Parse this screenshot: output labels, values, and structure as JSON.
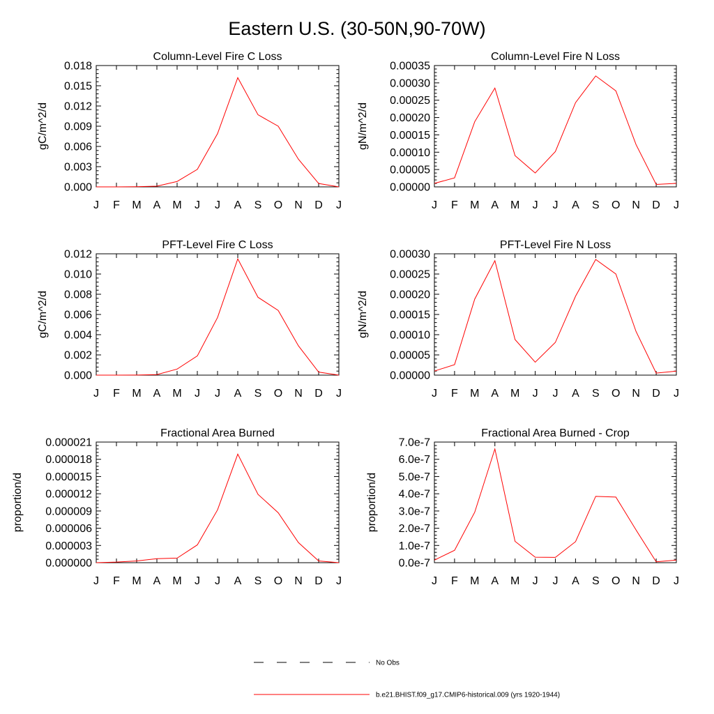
{
  "title": "Eastern U.S. (30-50N,90-70W)",
  "chart_data": [
    {
      "type": "line",
      "title": "Column-Level Fire C Loss",
      "ylabel": "gC/m^2/d",
      "categories": [
        "J",
        "F",
        "M",
        "A",
        "M",
        "J",
        "J",
        "A",
        "S",
        "O",
        "N",
        "D",
        "J"
      ],
      "ylim": [
        0,
        0.018
      ],
      "yticks": [
        "0.000",
        "0.003",
        "0.006",
        "0.009",
        "0.012",
        "0.015",
        "0.018"
      ],
      "series": [
        {
          "name": "b.e21.BHIST.f09_g17.CMIP6-historical.009 (yrs 1920-1944)",
          "color": "#ff0000",
          "values": [
            0.0,
            0.0,
            2e-05,
            0.0001,
            0.0008,
            0.0026,
            0.0079,
            0.0162,
            0.0107,
            0.009,
            0.0041,
            0.0005,
            0.0
          ]
        }
      ]
    },
    {
      "type": "line",
      "title": "Column-Level Fire N Loss",
      "ylabel": "gN/m^2/d",
      "categories": [
        "J",
        "F",
        "M",
        "A",
        "M",
        "J",
        "J",
        "A",
        "S",
        "O",
        "N",
        "D",
        "J"
      ],
      "ylim": [
        0,
        0.00035
      ],
      "yticks": [
        "0.00000",
        "0.00005",
        "0.00010",
        "0.00015",
        "0.00020",
        "0.00025",
        "0.00030",
        "0.00035"
      ],
      "series": [
        {
          "name": "b.e21.BHIST.f09_g17.CMIP6-historical.009 (yrs 1920-1944)",
          "color": "#ff0000",
          "values": [
            1e-05,
            2.6e-05,
            0.000188,
            0.000285,
            9e-05,
            4e-05,
            0.000102,
            0.000243,
            0.00032,
            0.000277,
            0.000122,
            7e-06,
            1e-05
          ]
        }
      ]
    },
    {
      "type": "line",
      "title": "PFT-Level Fire C Loss",
      "ylabel": "gC/m^2/d",
      "categories": [
        "J",
        "F",
        "M",
        "A",
        "M",
        "J",
        "J",
        "A",
        "S",
        "O",
        "N",
        "D",
        "J"
      ],
      "ylim": [
        0,
        0.012
      ],
      "yticks": [
        "0.000",
        "0.002",
        "0.004",
        "0.006",
        "0.008",
        "0.010",
        "0.012"
      ],
      "series": [
        {
          "name": "b.e21.BHIST.f09_g17.CMIP6-historical.009 (yrs 1920-1944)",
          "color": "#ff0000",
          "values": [
            0.0,
            0.0,
            1e-05,
            5e-05,
            0.0006,
            0.0019,
            0.0057,
            0.0115,
            0.0077,
            0.0064,
            0.0029,
            0.0003,
            0.0
          ]
        }
      ]
    },
    {
      "type": "line",
      "title": "PFT-Level Fire N Loss",
      "ylabel": "gN/m^2/d",
      "categories": [
        "J",
        "F",
        "M",
        "A",
        "M",
        "J",
        "J",
        "A",
        "S",
        "O",
        "N",
        "D",
        "J"
      ],
      "ylim": [
        0,
        0.0003
      ],
      "yticks": [
        "0.00000",
        "0.00005",
        "0.00010",
        "0.00015",
        "0.00020",
        "0.00025",
        "0.00030"
      ],
      "series": [
        {
          "name": "b.e21.BHIST.f09_g17.CMIP6-historical.009 (yrs 1920-1944)",
          "color": "#ff0000",
          "values": [
            1e-05,
            2.6e-05,
            0.000188,
            0.000283,
            8.8e-05,
            3.2e-05,
            8.1e-05,
            0.000195,
            0.000286,
            0.00025,
            0.000108,
            5e-06,
            1e-05
          ]
        }
      ]
    },
    {
      "type": "line",
      "title": "Fractional Area Burned",
      "ylabel": "proportion/d",
      "categories": [
        "J",
        "F",
        "M",
        "A",
        "M",
        "J",
        "J",
        "A",
        "S",
        "O",
        "N",
        "D",
        "J"
      ],
      "ylim": [
        0,
        2.1e-05
      ],
      "yticks": [
        "0.000000",
        "0.000003",
        "0.000006",
        "0.000009",
        "0.000012",
        "0.000015",
        "0.000018",
        "0.000021"
      ],
      "series": [
        {
          "name": "b.e21.BHIST.f09_g17.CMIP6-historical.009 (yrs 1920-1944)",
          "color": "#ff0000",
          "values": [
            0.0,
            1e-07,
            3e-07,
            7e-07,
            8e-07,
            3.1e-06,
            9.2e-06,
            1.89e-05,
            1.19e-05,
            8.7e-06,
            3.5e-06,
            3e-07,
            0.0
          ]
        }
      ]
    },
    {
      "type": "line",
      "title": "Fractional Area Burned - Crop",
      "ylabel": "proportion/d",
      "categories": [
        "J",
        "F",
        "M",
        "A",
        "M",
        "J",
        "J",
        "A",
        "S",
        "O",
        "N",
        "D",
        "J"
      ],
      "ylim": [
        0,
        7e-07
      ],
      "yticks": [
        "0.0e-7",
        "1.0e-7",
        "2.0e-7",
        "3.0e-7",
        "4.0e-7",
        "5.0e-7",
        "6.0e-7",
        "7.0e-7"
      ],
      "series": [
        {
          "name": "b.e21.BHIST.f09_g17.CMIP6-historical.009 (yrs 1920-1944)",
          "color": "#ff0000",
          "values": [
            1.5e-08,
            7.2e-08,
            2.93e-07,
            6.6e-07,
            1.24e-07,
            3.2e-08,
            3.1e-08,
            1.22e-07,
            3.85e-07,
            3.81e-07,
            1.9e-07,
            5e-09,
            1.5e-08
          ]
        }
      ]
    }
  ],
  "legend": [
    {
      "label": "No Obs",
      "style": "dashed",
      "color": "#000000"
    },
    {
      "label": "b.e21.BHIST.f09_g17.CMIP6-historical.009 (yrs 1920-1944)",
      "style": "solid",
      "color": "#ff0000"
    }
  ]
}
